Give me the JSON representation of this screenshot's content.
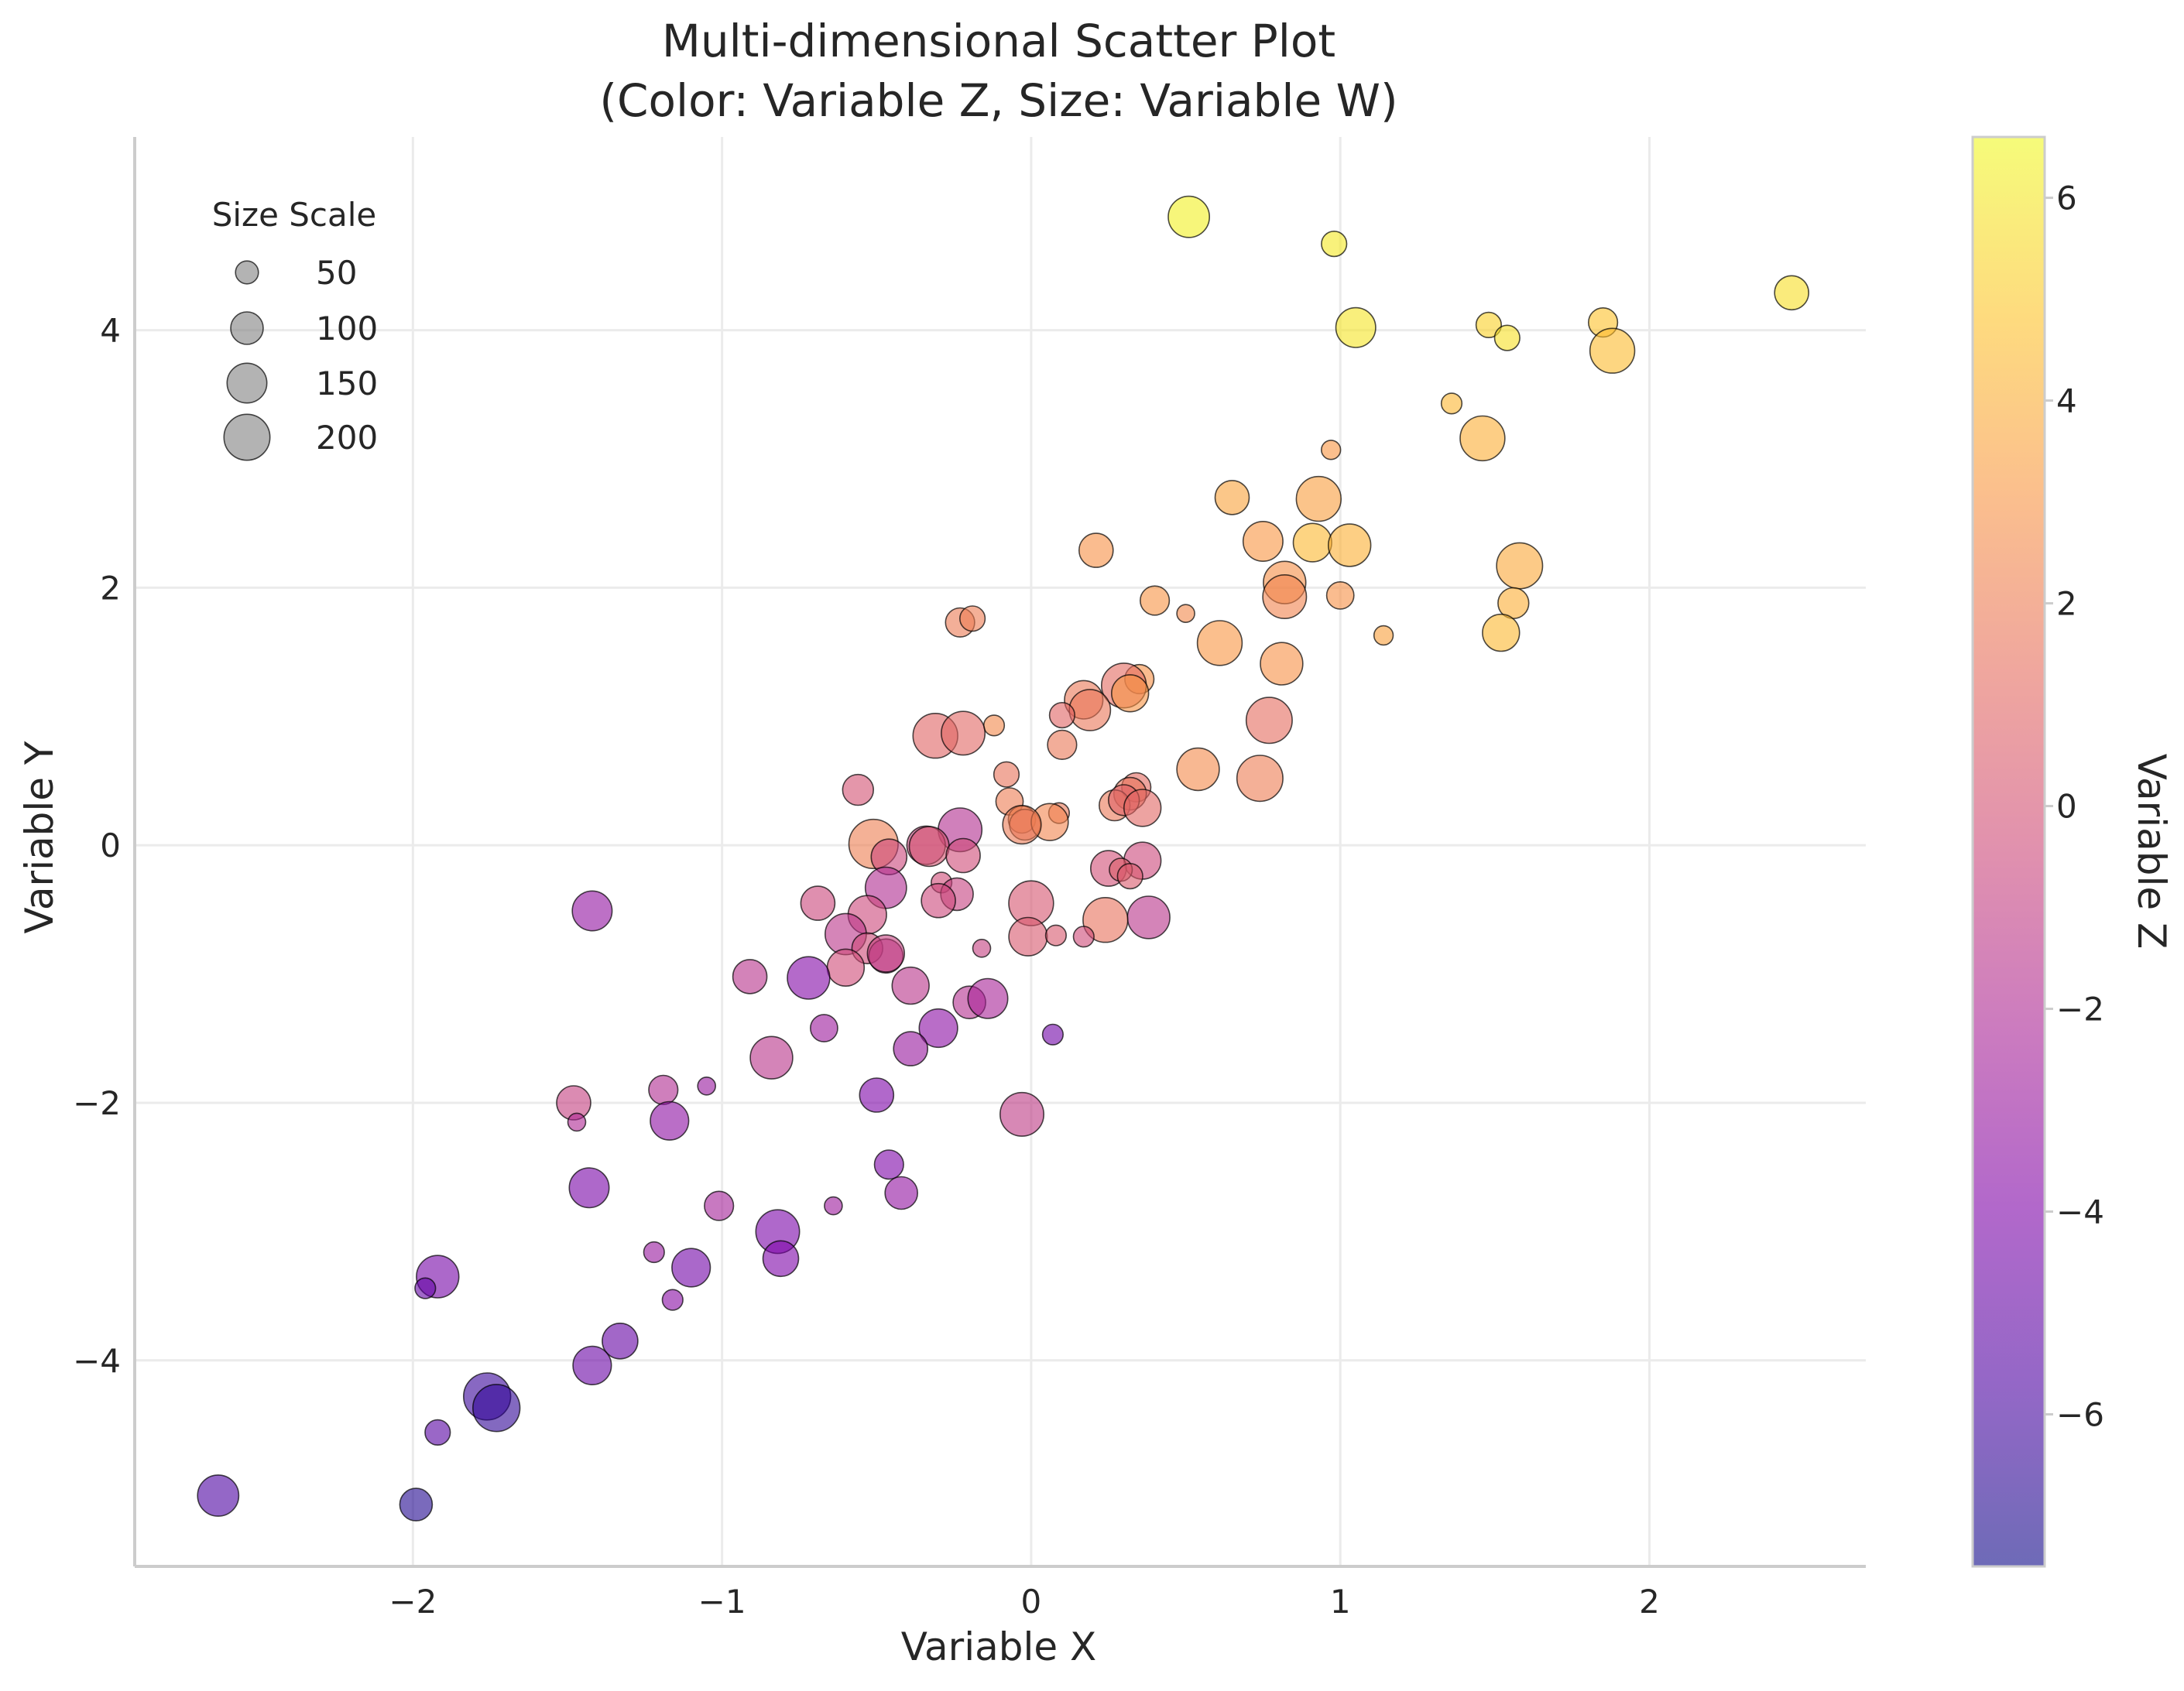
{
  "chart_data": {
    "type": "scatter",
    "title": "Multi-dimensional Scatter Plot\n(Color: Variable Z, Size: Variable W)",
    "title_lines": [
      "Multi-dimensional Scatter Plot",
      "(Color: Variable Z, Size: Variable W)"
    ],
    "xlabel": "Variable X",
    "ylabel": "Variable Y",
    "xlim": [
      -2.9,
      2.7
    ],
    "ylim": [
      -5.6,
      5.5
    ],
    "xticks": [
      -2,
      -1,
      0,
      1,
      2
    ],
    "yticks": [
      -4,
      -2,
      0,
      2,
      4
    ],
    "grid": true,
    "colormap": "plasma",
    "marker_alpha": 0.6,
    "colorbar": {
      "label": "Variable Z",
      "zlim": [
        -7.5,
        6.6
      ],
      "ticks": [
        -6,
        -4,
        -2,
        0,
        2,
        4,
        6
      ]
    },
    "size_legend": {
      "title": "Size Scale",
      "placement": "top-left",
      "entries": [
        50,
        100,
        150,
        200
      ]
    },
    "points_columns": [
      "x",
      "y",
      "z",
      "w"
    ],
    "points": [
      [
        0.51,
        4.88,
        6.3,
        160
      ],
      [
        0.98,
        4.67,
        6.0,
        60
      ],
      [
        1.05,
        4.02,
        5.9,
        150
      ],
      [
        2.46,
        4.29,
        5.7,
        110
      ],
      [
        1.48,
        4.04,
        5.3,
        60
      ],
      [
        1.54,
        3.94,
        5.8,
        60
      ],
      [
        1.85,
        4.06,
        4.8,
        80
      ],
      [
        1.88,
        3.84,
        4.5,
        190
      ],
      [
        1.36,
        3.43,
        4.3,
        40
      ],
      [
        1.46,
        3.16,
        4.0,
        190
      ],
      [
        0.97,
        3.07,
        3.1,
        35
      ],
      [
        0.65,
        2.7,
        3.6,
        110
      ],
      [
        0.93,
        2.69,
        3.4,
        190
      ],
      [
        0.91,
        2.35,
        4.4,
        140
      ],
      [
        1.03,
        2.33,
        4.1,
        170
      ],
      [
        0.75,
        2.36,
        3.1,
        150
      ],
      [
        0.21,
        2.29,
        2.9,
        110
      ],
      [
        1.58,
        2.17,
        3.8,
        200
      ],
      [
        0.82,
        2.04,
        2.8,
        170
      ],
      [
        0.82,
        1.93,
        2.3,
        180
      ],
      [
        1.0,
        1.94,
        2.9,
        70
      ],
      [
        0.4,
        1.9,
        3.0,
        80
      ],
      [
        0.5,
        1.8,
        2.5,
        30
      ],
      [
        1.14,
        1.63,
        3.5,
        35
      ],
      [
        1.56,
        1.88,
        4.0,
        90
      ],
      [
        1.52,
        1.65,
        4.4,
        130
      ],
      [
        -0.23,
        1.73,
        1.9,
        80
      ],
      [
        -0.19,
        1.76,
        2.0,
        60
      ],
      [
        0.61,
        1.57,
        3.1,
        190
      ],
      [
        0.81,
        1.41,
        2.9,
        170
      ],
      [
        0.35,
        1.29,
        2.9,
        80
      ],
      [
        0.3,
        1.24,
        1.2,
        190
      ],
      [
        0.32,
        1.18,
        3.0,
        130
      ],
      [
        0.17,
        1.13,
        1.8,
        140
      ],
      [
        0.19,
        1.05,
        1.7,
        160
      ],
      [
        0.1,
        1.01,
        0.9,
        60
      ],
      [
        0.77,
        0.97,
        1.3,
        200
      ],
      [
        -0.12,
        0.93,
        2.5,
        40
      ],
      [
        -0.31,
        0.85,
        0.9,
        190
      ],
      [
        -0.22,
        0.87,
        1.0,
        180
      ],
      [
        0.1,
        0.78,
        1.8,
        80
      ],
      [
        0.54,
        0.59,
        2.6,
        170
      ],
      [
        -0.08,
        0.55,
        1.6,
        60
      ],
      [
        0.74,
        0.52,
        2.0,
        200
      ],
      [
        -0.56,
        0.43,
        0.0,
        90
      ],
      [
        0.34,
        0.45,
        1.2,
        80
      ],
      [
        0.32,
        0.4,
        1.6,
        100
      ],
      [
        -0.07,
        0.34,
        2.0,
        70
      ],
      [
        0.27,
        0.31,
        1.8,
        90
      ],
      [
        0.3,
        0.35,
        0.8,
        90
      ],
      [
        0.36,
        0.29,
        1.0,
        130
      ],
      [
        0.09,
        0.25,
        1.8,
        40
      ],
      [
        -0.03,
        0.2,
        2.5,
        70
      ],
      [
        -0.02,
        0.16,
        1.5,
        90
      ],
      [
        0.06,
        0.18,
        2.4,
        130
      ],
      [
        -0.03,
        0.16,
        1.9,
        140
      ],
      [
        -0.23,
        0.12,
        -1.8,
        180
      ],
      [
        -0.51,
        0.01,
        2.1,
        230
      ],
      [
        -0.34,
        0.0,
        -0.7,
        140
      ],
      [
        -0.33,
        -0.01,
        0.1,
        150
      ],
      [
        -0.46,
        -0.09,
        -0.6,
        120
      ],
      [
        -0.22,
        -0.08,
        -0.3,
        110
      ],
      [
        0.36,
        -0.12,
        -0.5,
        130
      ],
      [
        0.25,
        -0.18,
        -0.2,
        120
      ],
      [
        0.29,
        -0.19,
        0.6,
        50
      ],
      [
        0.32,
        -0.24,
        0.4,
        60
      ],
      [
        -0.29,
        -0.29,
        -0.3,
        40
      ],
      [
        -0.47,
        -0.33,
        -1.9,
        160
      ],
      [
        -0.69,
        -0.45,
        -0.6,
        110
      ],
      [
        -0.24,
        -0.38,
        -0.8,
        100
      ],
      [
        -0.3,
        -0.43,
        -0.5,
        110
      ],
      [
        0.0,
        -0.45,
        0.2,
        190
      ],
      [
        -0.53,
        -0.54,
        -0.5,
        140
      ],
      [
        0.38,
        -0.56,
        -1.5,
        170
      ],
      [
        0.24,
        -0.58,
        1.5,
        190
      ],
      [
        -0.6,
        -0.69,
        -1.4,
        160
      ],
      [
        -1.42,
        -0.51,
        -3.2,
        150
      ],
      [
        -0.01,
        -0.71,
        0.3,
        140
      ],
      [
        0.08,
        -0.7,
        0.3,
        40
      ],
      [
        0.17,
        -0.71,
        -0.4,
        40
      ],
      [
        -0.16,
        -0.8,
        -0.9,
        30
      ],
      [
        -0.53,
        -0.8,
        -0.4,
        90
      ],
      [
        -0.47,
        -0.86,
        -1.6,
        110
      ],
      [
        -0.47,
        -0.84,
        -0.8,
        130
      ],
      [
        -0.6,
        -0.95,
        -0.3,
        130
      ],
      [
        -0.91,
        -1.02,
        -1.6,
        110
      ],
      [
        -0.72,
        -1.03,
        -3.8,
        170
      ],
      [
        -0.39,
        -1.09,
        -1.5,
        130
      ],
      [
        -0.2,
        -1.22,
        -1.7,
        100
      ],
      [
        -0.14,
        -1.19,
        -2.3,
        150
      ],
      [
        -0.67,
        -1.42,
        -2.8,
        70
      ],
      [
        -0.3,
        -1.42,
        -3.5,
        140
      ],
      [
        -0.39,
        -1.58,
        -3.0,
        110
      ],
      [
        0.07,
        -1.47,
        -4.5,
        40
      ],
      [
        -0.84,
        -1.65,
        -1.5,
        170
      ],
      [
        -0.5,
        -1.94,
        -4.0,
        110
      ],
      [
        -0.03,
        -2.09,
        -1.2,
        180
      ],
      [
        -1.48,
        -2.0,
        -0.9,
        110
      ],
      [
        -1.19,
        -1.9,
        -1.9,
        80
      ],
      [
        -1.05,
        -1.87,
        -3.0,
        30
      ],
      [
        -1.47,
        -2.15,
        -2.0,
        30
      ],
      [
        -1.17,
        -2.14,
        -3.4,
        140
      ],
      [
        -0.46,
        -2.48,
        -4.0,
        80
      ],
      [
        -1.43,
        -2.66,
        -4.2,
        150
      ],
      [
        -0.42,
        -2.7,
        -3.2,
        100
      ],
      [
        -1.01,
        -2.8,
        -2.4,
        80
      ],
      [
        -0.64,
        -2.8,
        -2.8,
        30
      ],
      [
        -0.82,
        -3.0,
        -4.1,
        180
      ],
      [
        -0.81,
        -3.21,
        -4.0,
        120
      ],
      [
        -1.22,
        -3.16,
        -3.0,
        40
      ],
      [
        -1.1,
        -3.28,
        -4.4,
        140
      ],
      [
        -1.92,
        -3.35,
        -4.3,
        170
      ],
      [
        -1.96,
        -3.44,
        -5.0,
        40
      ],
      [
        -1.16,
        -3.53,
        -3.6,
        40
      ],
      [
        -1.33,
        -3.85,
        -4.9,
        120
      ],
      [
        -1.42,
        -4.04,
        -4.7,
        140
      ],
      [
        -1.76,
        -4.28,
        -6.3,
        210
      ],
      [
        -1.73,
        -4.37,
        -6.5,
        210
      ],
      [
        -1.92,
        -4.56,
        -5.4,
        60
      ],
      [
        -2.63,
        -5.05,
        -5.7,
        160
      ],
      [
        -1.99,
        -5.12,
        -6.9,
        100
      ]
    ]
  }
}
